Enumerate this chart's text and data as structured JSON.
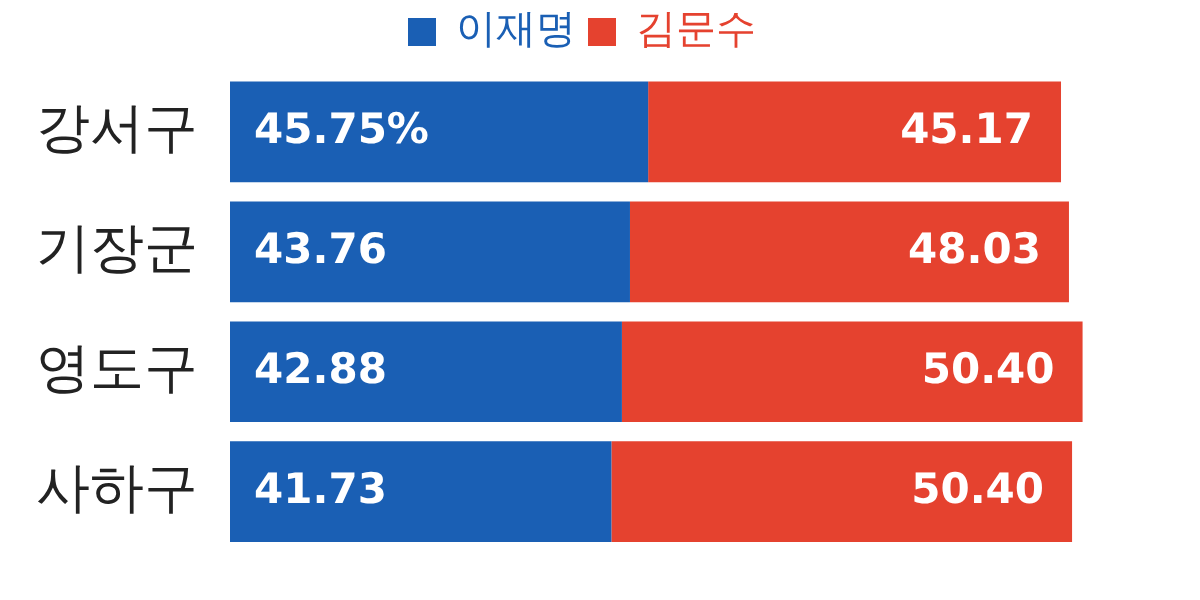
{
  "chart_data": {
    "type": "bar",
    "orientation": "horizontal",
    "stacked": true,
    "legend": "top",
    "categories": [
      "강서구",
      "기장군",
      "영도구",
      "사하구"
    ],
    "series": [
      {
        "name": "이재명",
        "color": "#1a5fb4",
        "values": [
          45.75,
          43.76,
          42.88,
          41.73
        ],
        "value_labels": [
          "45.75%",
          "43.76",
          "42.88",
          "41.73"
        ]
      },
      {
        "name": "김문수",
        "color": "#e5422f",
        "values": [
          45.17,
          48.03,
          50.4,
          50.4
        ],
        "value_labels": [
          "45.17",
          "48.03",
          "50.40",
          "50.40"
        ]
      }
    ]
  }
}
